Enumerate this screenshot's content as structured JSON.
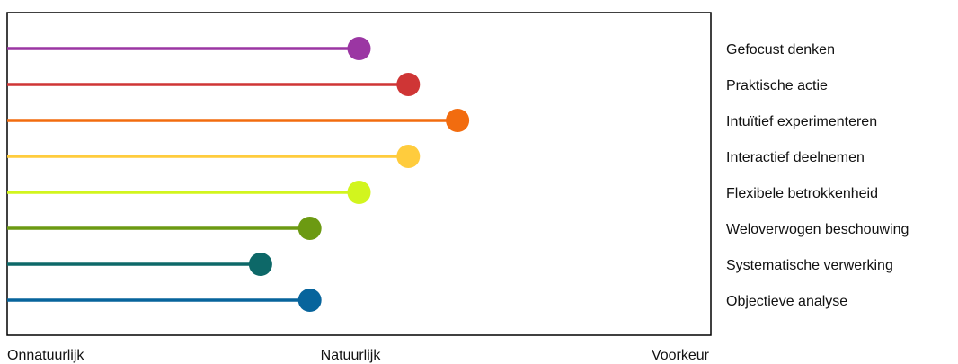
{
  "chart_data": {
    "type": "lollipop",
    "categories": [
      "Gefocust denken",
      "Praktische actie",
      "Intuïtief experimenteren",
      "Interactief deelnemen",
      "Flexibele betrokkenheid",
      "Weloverwogen beschouwing",
      "Systematische verwerking",
      "Objectieve analyse"
    ],
    "values": [
      0.5,
      0.57,
      0.64,
      0.57,
      0.5,
      0.43,
      0.36,
      0.43
    ],
    "colors": [
      "#9b36a3",
      "#cf3535",
      "#f26c0f",
      "#ffcc3d",
      "#d2f51e",
      "#6c9a12",
      "#0d6868",
      "#07649c"
    ],
    "x_ticks": [
      "Onnatuurlijk",
      "Natuurlijk",
      "Voorkeur"
    ],
    "x_range": [
      0,
      1
    ],
    "grid": false,
    "legend_position": "right"
  }
}
